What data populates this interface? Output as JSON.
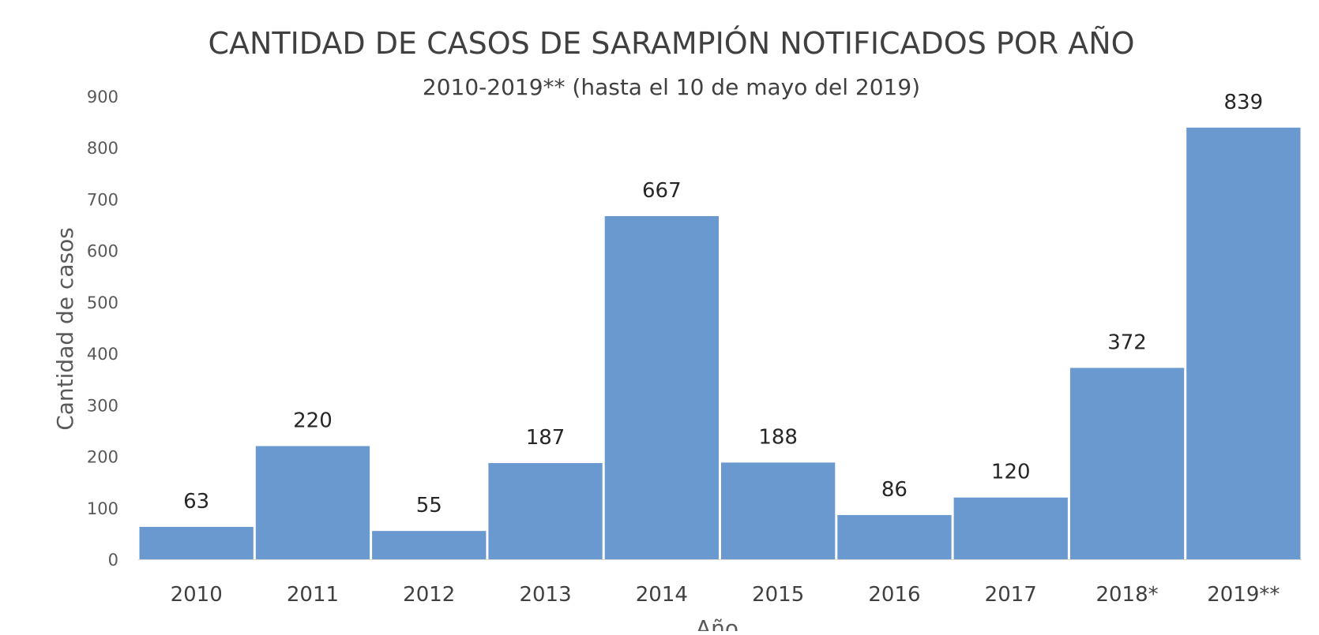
{
  "chart_data": {
    "type": "bar",
    "title": "CANTIDAD DE CASOS DE SARAMPIÓN NOTIFICADOS POR AÑO",
    "subtitle": "2010-2019** (hasta el 10 de mayo del 2019)",
    "xlabel": "Año",
    "ylabel": "Cantidad de casos",
    "categories": [
      "2010",
      "2011",
      "2012",
      "2013",
      "2014",
      "2015",
      "2016",
      "2017",
      "2018*",
      "2019**"
    ],
    "values": [
      63,
      220,
      55,
      187,
      667,
      188,
      86,
      120,
      372,
      839
    ],
    "ylim": [
      0,
      900
    ],
    "yticks": [
      0,
      100,
      200,
      300,
      400,
      500,
      600,
      700,
      800,
      900
    ],
    "grid": false,
    "legend": "none",
    "colors": {
      "bar": "#6a99d0",
      "text": "#404040",
      "axis_text": "#595959",
      "data_label": "#262626"
    }
  }
}
